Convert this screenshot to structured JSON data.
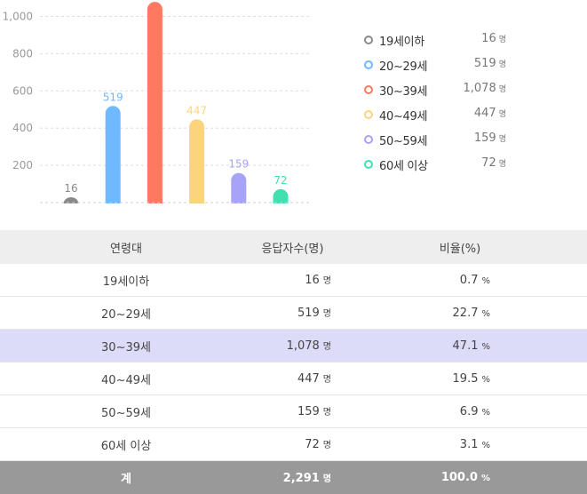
{
  "chart_data": {
    "type": "bar",
    "categories": [
      "19세이하",
      "20~29세",
      "30~39세",
      "40~49세",
      "50~59세",
      "60세 이상"
    ],
    "values": [
      16,
      519,
      1078,
      447,
      159,
      72
    ],
    "value_labels": [
      "16",
      "519",
      "1,078",
      "447",
      "159",
      "72"
    ],
    "colors": [
      "#8a8a8a",
      "#70b8ff",
      "#ff7860",
      "#fcd47e",
      "#a7a3f6",
      "#40e0b0"
    ],
    "yticks": [
      200,
      400,
      600,
      800,
      1000
    ],
    "ytick_labels": [
      "200",
      "400",
      "600",
      "800",
      "1,000"
    ],
    "ylim": [
      0,
      1050
    ],
    "grid": true,
    "legend_position": "right"
  },
  "legend": {
    "unit": "명",
    "items": [
      {
        "label": "19세이하",
        "value": "16",
        "color": "#8a8a8a"
      },
      {
        "label": "20~29세",
        "value": "519",
        "color": "#70b8ff"
      },
      {
        "label": "30~39세",
        "value": "1,078",
        "color": "#ff7860"
      },
      {
        "label": "40~49세",
        "value": "447",
        "color": "#fcd47e"
      },
      {
        "label": "50~59세",
        "value": "159",
        "color": "#a7a3f6"
      },
      {
        "label": "60세 이상",
        "value": "72",
        "color": "#40e0b0"
      }
    ]
  },
  "table": {
    "headers": [
      "연령대",
      "응답자수(명)",
      "비율(%)"
    ],
    "count_unit": "명",
    "pct_unit": "%",
    "rows": [
      {
        "age": "19세이하",
        "count": "16",
        "pct": "0.7"
      },
      {
        "age": "20~29세",
        "count": "519",
        "pct": "22.7"
      },
      {
        "age": "30~39세",
        "count": "1,078",
        "pct": "47.1"
      },
      {
        "age": "40~49세",
        "count": "447",
        "pct": "19.5"
      },
      {
        "age": "50~59세",
        "count": "159",
        "pct": "6.9"
      },
      {
        "age": "60세 이상",
        "count": "72",
        "pct": "3.1"
      }
    ],
    "total": {
      "label": "계",
      "count": "2,291",
      "pct": "100.0"
    }
  }
}
